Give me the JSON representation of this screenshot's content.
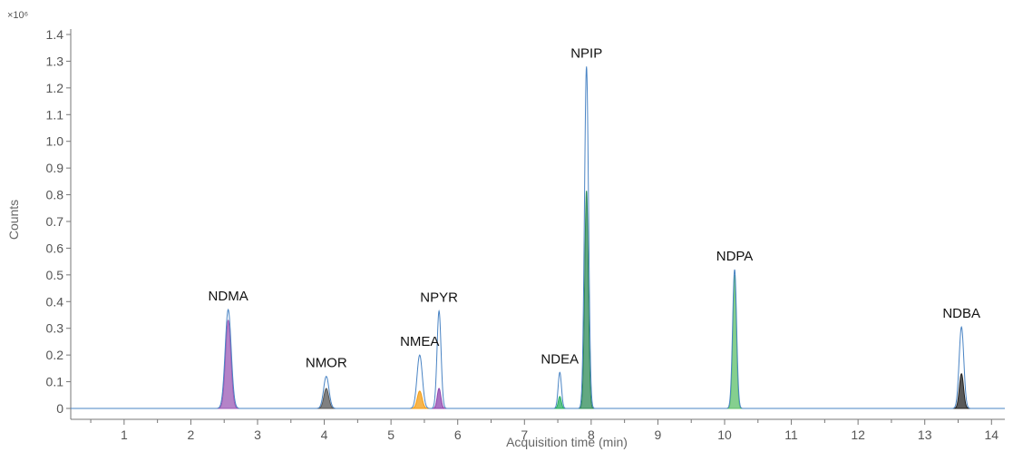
{
  "chart_data": {
    "type": "line",
    "title": "",
    "xlabel": "Acquisition time (min)",
    "ylabel": "Counts",
    "y_multiplier": "×10⁶",
    "xlim": [
      0.2,
      14.2
    ],
    "ylim": [
      0,
      1.4
    ],
    "x_ticks": [
      1,
      2,
      3,
      4,
      5,
      6,
      7,
      8,
      9,
      10,
      11,
      12,
      13,
      14
    ],
    "y_ticks": [
      0,
      0.1,
      0.2,
      0.3,
      0.4,
      0.5,
      0.6,
      0.7,
      0.8,
      0.9,
      1.0,
      1.1,
      1.2,
      1.3,
      1.4
    ],
    "y_tick_labels": [
      "0",
      "0.1",
      "0.2",
      "0.3",
      "0.4",
      "0.5",
      "0.6",
      "0.7",
      "0.8",
      "0.9",
      "1.0",
      "1.1",
      "1.2",
      "1.3",
      "1.4"
    ],
    "grid": false,
    "baseline_range": [
      0.2,
      14.2
    ],
    "peaks": [
      {
        "label": "NDMA",
        "rt": 2.56,
        "tic_height": 0.37,
        "filled_height": 0.33,
        "width": 0.045,
        "fill_color": "#9b59b6"
      },
      {
        "label": "NMOR",
        "rt": 4.03,
        "tic_height": 0.12,
        "filled_height": 0.075,
        "width": 0.04,
        "fill_color": "#555555"
      },
      {
        "label": "NMEA",
        "rt": 5.43,
        "tic_height": 0.2,
        "filled_height": 0.065,
        "width": 0.04,
        "fill_color": "#f39c12"
      },
      {
        "label": "NPYR",
        "rt": 5.72,
        "tic_height": 0.365,
        "filled_height": 0.075,
        "width": 0.03,
        "fill_color": "#8e44ad"
      },
      {
        "label": "NDEA",
        "rt": 7.53,
        "tic_height": 0.135,
        "filled_height": 0.045,
        "width": 0.025,
        "fill_color": "#27ae60"
      },
      {
        "label": "NPIP",
        "rt": 7.93,
        "tic_height": 1.28,
        "filled_height": 0.815,
        "width": 0.03,
        "fill_color": "#2e8b57"
      },
      {
        "label": "NDPA",
        "rt": 10.15,
        "tic_height": 0.52,
        "filled_height": 0.5,
        "width": 0.03,
        "fill_color": "#5cbf6a"
      },
      {
        "label": "NDBA",
        "rt": 13.55,
        "tic_height": 0.305,
        "filled_height": 0.13,
        "width": 0.035,
        "fill_color": "#222222"
      }
    ],
    "tic_color": "#4a84c4"
  }
}
